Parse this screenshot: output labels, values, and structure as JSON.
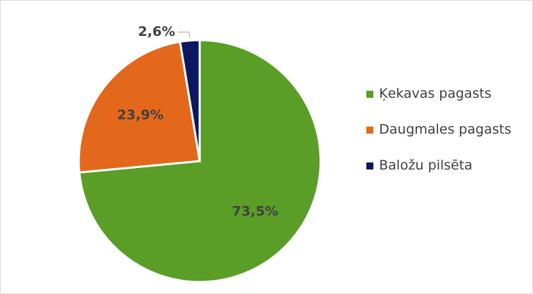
{
  "chart_data": {
    "type": "pie",
    "categories": [
      "Ķekavas pagasts",
      "Daugmales pagasts",
      "Baložu pilsēta"
    ],
    "values": [
      73.5,
      23.9,
      2.6
    ],
    "value_labels": [
      "73,5%",
      "23,9%",
      "2,6%"
    ],
    "colors": [
      "#5a9e27",
      "#e4681b",
      "#0d1660"
    ],
    "legend": "right"
  }
}
